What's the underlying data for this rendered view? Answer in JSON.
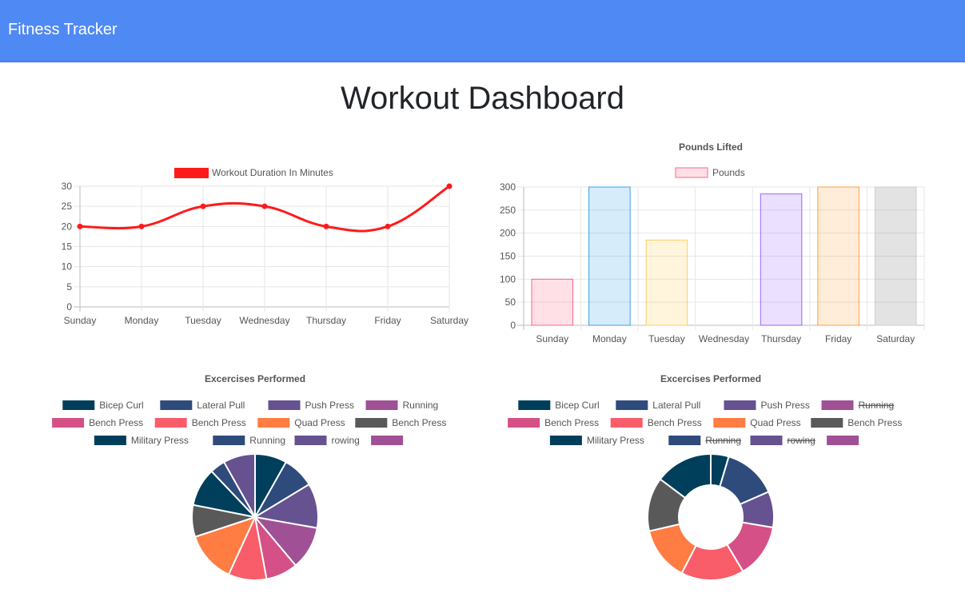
{
  "navbar": {
    "brand": "Fitness Tracker"
  },
  "page": {
    "title": "Workout Dashboard"
  },
  "chart_data": [
    {
      "id": "duration",
      "type": "line",
      "title": "",
      "legend": [
        "Workout Duration In Minutes"
      ],
      "legend_position": "top",
      "categories": [
        "Sunday",
        "Monday",
        "Tuesday",
        "Wednesday",
        "Thursday",
        "Friday",
        "Saturday"
      ],
      "series": [
        {
          "name": "Workout Duration In Minutes",
          "values": [
            20,
            20,
            25,
            25,
            20,
            20,
            30
          ],
          "color": "#ff1a1a"
        }
      ],
      "ylim": [
        0,
        30
      ],
      "yticks": [
        0,
        5,
        10,
        15,
        20,
        25,
        30
      ],
      "grid": true
    },
    {
      "id": "pounds",
      "type": "bar",
      "title": "Pounds Lifted",
      "legend": [
        "Pounds"
      ],
      "legend_position": "top",
      "categories": [
        "Sunday",
        "Monday",
        "Tuesday",
        "Wednesday",
        "Thursday",
        "Friday",
        "Saturday"
      ],
      "series": [
        {
          "name": "Pounds",
          "values": [
            100,
            300,
            185,
            0,
            285,
            300,
            300
          ]
        }
      ],
      "colors": {
        "fill": [
          "rgba(255,99,132,0.2)",
          "rgba(54,162,235,0.2)",
          "rgba(255,206,86,0.2)",
          "rgba(75,192,192,0.2)",
          "rgba(153,102,255,0.2)",
          "rgba(255,159,64,0.2)",
          "rgba(128,128,128,0.22)"
        ],
        "border": [
          "#ff6384",
          "#36a2eb",
          "#ffce56",
          "#4bc0c0",
          "#9966ff",
          "#ff9f40",
          "#cccccc"
        ]
      },
      "ylim": [
        0,
        300
      ],
      "yticks": [
        0,
        50,
        100,
        150,
        200,
        250,
        300
      ],
      "grid": true
    },
    {
      "id": "exercises-pie",
      "type": "pie",
      "title": "Excercises Performed",
      "legend_position": "top",
      "slices": [
        {
          "label": "Bicep Curl",
          "value": 25,
          "color": "#003f5c",
          "hidden": false
        },
        {
          "label": "Lateral Pull",
          "value": 25,
          "color": "#2f4b7c",
          "hidden": false
        },
        {
          "label": "Push Press",
          "value": 35,
          "color": "#665191",
          "hidden": false
        },
        {
          "label": "Running",
          "value": 34,
          "color": "#a05195",
          "hidden": false
        },
        {
          "label": "Bench Press",
          "value": 25,
          "color": "#d45087",
          "hidden": false
        },
        {
          "label": "Bench Press",
          "value": 30,
          "color": "#f95d6a",
          "hidden": false
        },
        {
          "label": "Quad Press",
          "value": 40,
          "color": "#ff7c43",
          "hidden": false
        },
        {
          "label": "Bench Press",
          "value": 25,
          "color": "#595959",
          "hidden": false
        },
        {
          "label": "Military Press",
          "value": 30,
          "color": "#003f5c",
          "hidden": false
        },
        {
          "label": "Running",
          "value": 12,
          "color": "#2f4b7c",
          "hidden": false
        },
        {
          "label": "rowing",
          "value": 25,
          "color": "#665191",
          "hidden": false
        },
        {
          "label": "",
          "value": 0,
          "color": "#a05195",
          "hidden": false
        }
      ]
    },
    {
      "id": "exercises-doughnut",
      "type": "doughnut",
      "title": "Excercises Performed",
      "legend_position": "top",
      "slices": [
        {
          "label": "Bicep Curl",
          "value": 10,
          "color": "#003f5c",
          "hidden": false
        },
        {
          "label": "Lateral Pull",
          "value": 30,
          "color": "#2f4b7c",
          "hidden": false
        },
        {
          "label": "Push Press",
          "value": 20,
          "color": "#665191",
          "hidden": false
        },
        {
          "label": "Running",
          "value": 0,
          "color": "#a05195",
          "hidden": true
        },
        {
          "label": "Bench Press",
          "value": 30,
          "color": "#d45087",
          "hidden": false
        },
        {
          "label": "Bench Press",
          "value": 35,
          "color": "#f95d6a",
          "hidden": false
        },
        {
          "label": "Quad Press",
          "value": 30,
          "color": "#ff7c43",
          "hidden": false
        },
        {
          "label": "Bench Press",
          "value": 30,
          "color": "#595959",
          "hidden": false
        },
        {
          "label": "Military Press",
          "value": 32,
          "color": "#003f5c",
          "hidden": false
        },
        {
          "label": "Running",
          "value": 0,
          "color": "#2f4b7c",
          "hidden": true
        },
        {
          "label": "rowing",
          "value": 0,
          "color": "#665191",
          "hidden": true
        },
        {
          "label": "",
          "value": 0,
          "color": "#a05195",
          "hidden": false
        }
      ]
    }
  ]
}
